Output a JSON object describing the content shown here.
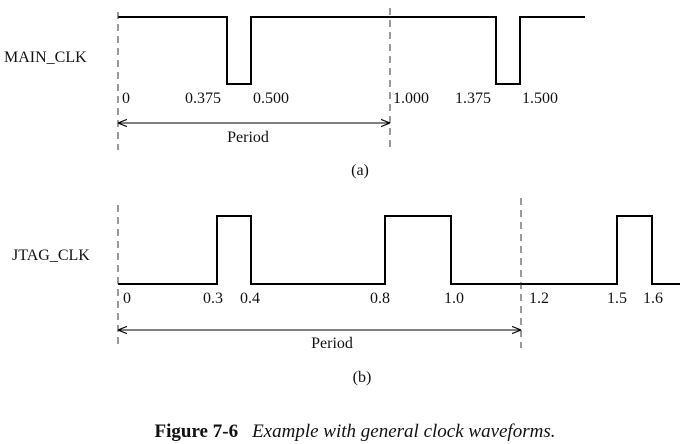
{
  "panels": [
    {
      "signal": "MAIN_CLK",
      "ticks": [
        "0",
        "0.375",
        "0.500",
        "1.000",
        "1.375",
        "1.500"
      ],
      "period": "Period",
      "label": "(a)"
    },
    {
      "signal": "JTAG_CLK",
      "ticks": [
        "0",
        "0.3",
        "0.4",
        "0.8",
        "1.0",
        "1.2",
        "1.5",
        "1.6"
      ],
      "period": "Period",
      "label": "(b)"
    }
  ],
  "caption": {
    "number": "Figure 7-6",
    "text": "Example with general clock waveforms."
  }
}
